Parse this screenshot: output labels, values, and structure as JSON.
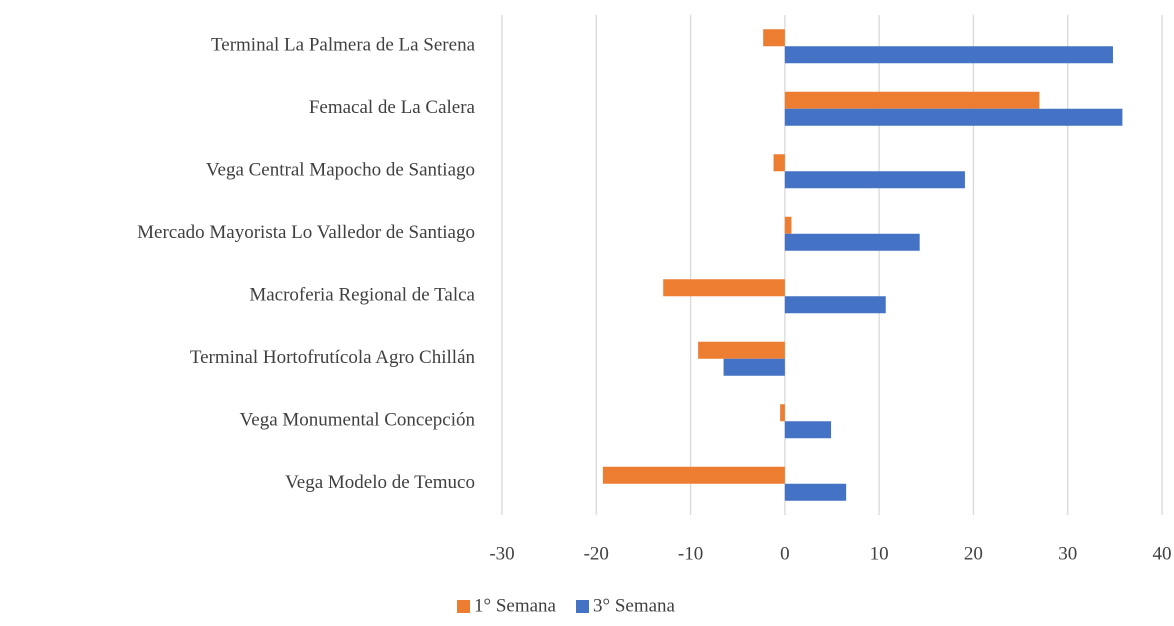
{
  "chart_data": {
    "type": "hbar",
    "categories": [
      "Terminal La Palmera de La Serena",
      "Femacal de La Calera",
      "Vega Central Mapocho de Santiago",
      "Mercado Mayorista Lo Valledor de Santiago",
      "Macroferia Regional de Talca",
      "Terminal Hortofrutícola Agro Chillán",
      "Vega Monumental Concepción",
      "Vega Modelo de Temuco"
    ],
    "series": [
      {
        "name": "1° Semana",
        "color": "#ed7d31",
        "values": [
          -2.3,
          27.0,
          -1.2,
          0.7,
          -12.9,
          -9.2,
          -0.5,
          -19.3
        ]
      },
      {
        "name": "3° Semana",
        "color": "#4472c4",
        "values": [
          34.8,
          35.8,
          19.1,
          14.3,
          10.7,
          -6.5,
          4.9,
          6.5
        ]
      }
    ],
    "xlim": [
      -30,
      40
    ],
    "xticks": [
      -30,
      -20,
      -10,
      0,
      10,
      20,
      30,
      40
    ],
    "grid": true,
    "legend": "bottom"
  }
}
